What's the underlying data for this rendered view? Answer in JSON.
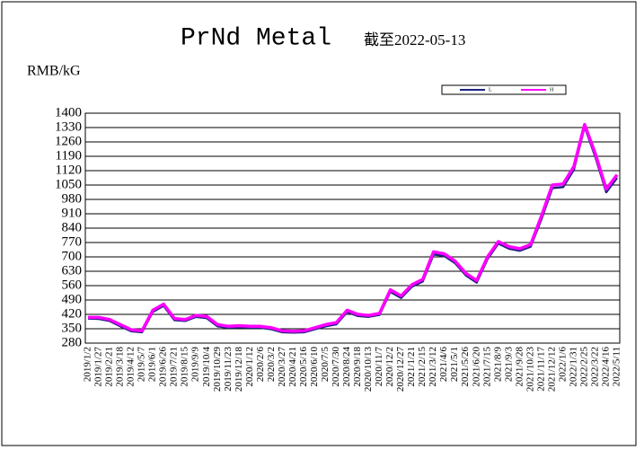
{
  "chart_data": {
    "type": "line",
    "title": "PrNd Metal",
    "subtitle": "截至2022-05-13",
    "y_label": "RMB/kG",
    "categories": [
      "2019/1/2",
      "2019/1/27",
      "2019/2/21",
      "2019/3/18",
      "2019/4/12",
      "2019/5/7",
      "2019/6/1",
      "2019/6/26",
      "2019/7/21",
      "2019/8/15",
      "2019/9/9",
      "2019/10/4",
      "2019/10/29",
      "2019/11/23",
      "2019/12/18",
      "2020/1/12",
      "2020/2/6",
      "2020/3/2",
      "2020/3/27",
      "2020/4/21",
      "2020/5/16",
      "2020/6/10",
      "2020/7/5",
      "2020/7/30",
      "2020/8/24",
      "2020/9/18",
      "2020/10/13",
      "2020/11/7",
      "2020/12/2",
      "2020/12/27",
      "2021/1/21",
      "2021/2/15",
      "2021/3/12",
      "2021/4/6",
      "2021/5/1",
      "2021/5/26",
      "2021/6/20",
      "2021/7/15",
      "2021/8/9",
      "2021/9/3",
      "2021/9/28",
      "2021/10/23",
      "2021/11/17",
      "2021/12/12",
      "2022/1/6",
      "2022/1/31",
      "2022/2/25",
      "2022/3/22",
      "2022/4/16",
      "2022/5/11"
    ],
    "series": [
      {
        "name": "L",
        "color": "#1a237e",
        "values": [
          400,
          398,
          388,
          362,
          338,
          333,
          432,
          462,
          392,
          388,
          408,
          402,
          362,
          355,
          358,
          355,
          355,
          348,
          333,
          331,
          333,
          348,
          362,
          372,
          432,
          412,
          408,
          418,
          530,
          500,
          555,
          580,
          712,
          705,
          670,
          610,
          575,
          690,
          765,
          740,
          730,
          750,
          885,
          1035,
          1040,
          1125,
          1335,
          1185,
          1015,
          1085
        ]
      },
      {
        "name": "H",
        "color": "#ff00ff",
        "values": [
          405,
          405,
          395,
          370,
          345,
          340,
          440,
          470,
          400,
          395,
          415,
          410,
          370,
          362,
          365,
          362,
          362,
          355,
          340,
          338,
          340,
          355,
          370,
          380,
          440,
          420,
          415,
          425,
          540,
          510,
          565,
          590,
          725,
          715,
          680,
          620,
          585,
          700,
          775,
          750,
          740,
          760,
          900,
          1050,
          1055,
          1140,
          1345,
          1200,
          1030,
          1100
        ]
      }
    ],
    "ylim": [
      280,
      1400
    ],
    "yticks": [
      280,
      350,
      420,
      490,
      560,
      630,
      700,
      770,
      840,
      910,
      980,
      1050,
      1120,
      1190,
      1260,
      1330,
      1400
    ],
    "grid": true
  }
}
